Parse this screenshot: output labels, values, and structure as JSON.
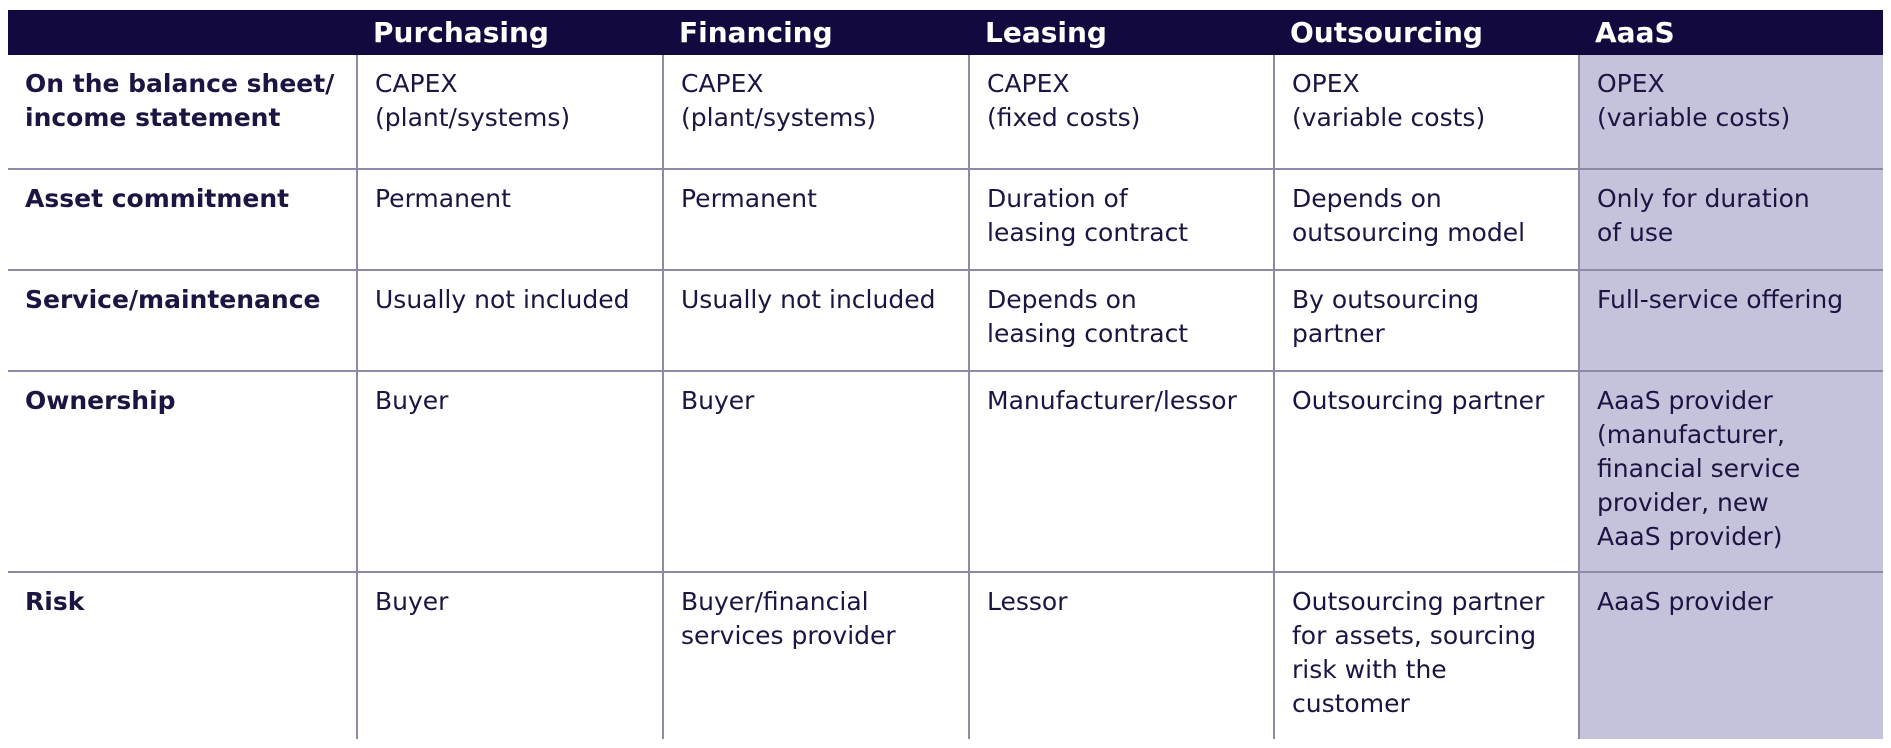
{
  "columns": [
    "Purchasing",
    "Financing",
    "Leasing",
    "Outsourcing",
    "AaaS"
  ],
  "rows": [
    {
      "label": "On the balance sheet/\nincome statement",
      "cells": [
        "CAPEX\n(plant/systems)",
        "CAPEX\n(plant/systems)",
        "CAPEX\n(fixed costs)",
        "OPEX\n(variable costs)",
        "OPEX\n(variable costs)"
      ]
    },
    {
      "label": "Asset commitment",
      "cells": [
        "Permanent",
        "Permanent",
        "Duration of\nleasing contract",
        "Depends on\noutsourcing model",
        "Only for duration\nof use"
      ]
    },
    {
      "label": "Service/maintenance",
      "cells": [
        "Usually not included",
        "Usually not included",
        "Depends on\nleasing contract",
        "By outsourcing\npartner",
        "Full-service offering"
      ]
    },
    {
      "label": "Ownership",
      "cells": [
        "Buyer",
        "Buyer",
        "Manufacturer/lessor",
        "Outsourcing partner",
        "AaaS provider\n(manufacturer,\nfinancial service\nprovider, new\nAaaS provider)"
      ]
    },
    {
      "label": "Risk",
      "cells": [
        "Buyer",
        "Buyer/financial\nservices provider",
        "Lessor",
        "Outsourcing partner\nfor assets, sourcing\nrisk with the\ncustomer",
        "AaaS provider"
      ]
    }
  ],
  "colors": {
    "header_bg": "#12093e",
    "text": "#1d1442",
    "aaas_bg": "#c4c3db",
    "grid_line": "#8d8aa8"
  }
}
